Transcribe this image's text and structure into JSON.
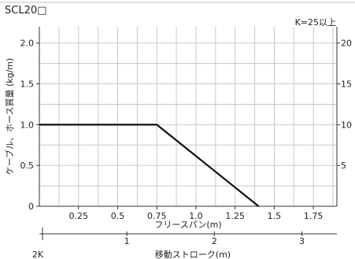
{
  "header": {
    "title": "SCL20□",
    "k_label": "K=25以上"
  },
  "chart_data": {
    "type": "line",
    "title": "SCL20□",
    "xlabel": "フリースパン(m)",
    "xlabel2": "移動ストローク(m)",
    "ylabel": "ケーブル、ホース質量 (kg/m)",
    "xlim": [
      0,
      1.9
    ],
    "ylim": [
      0,
      2.2
    ],
    "x_ticks": [
      "0.25",
      "0.5",
      "0.75",
      "1.0",
      "1.25",
      "1.5",
      "1.75"
    ],
    "y_ticks": [
      "0",
      "0.5",
      "1.0",
      "1.5",
      "2.0"
    ],
    "y2_ticks": [
      "5",
      "10",
      "15",
      "20"
    ],
    "stroke_ticks": [
      "1",
      "2",
      "3"
    ],
    "stroke_origin_label": "2K",
    "grid": true,
    "series": [
      {
        "x": [
          0,
          0.75,
          1.4
        ],
        "y": [
          1.0,
          1.0,
          0
        ]
      }
    ]
  }
}
